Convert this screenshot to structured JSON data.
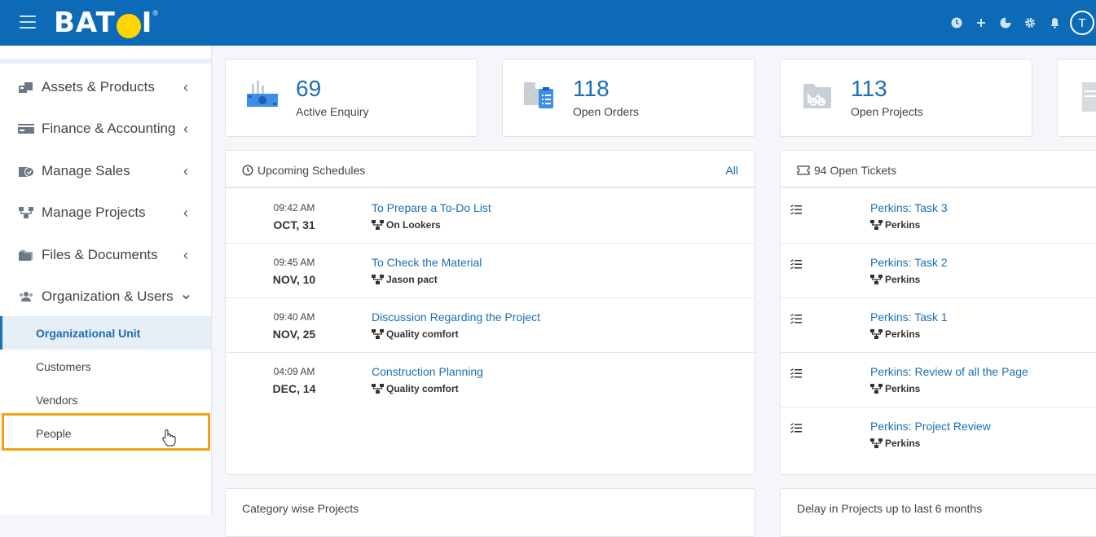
{
  "header": {
    "logo_text_left": "BAT",
    "logo_text_right": "I",
    "logo_reg": "®",
    "avatar_initial": "T",
    "icons": [
      "clock-icon",
      "plus-icon",
      "pie-chart-icon",
      "gear-icon",
      "bell-icon"
    ]
  },
  "sidebar": {
    "items": [
      {
        "label": "Assets & Products",
        "icon": "assets-icon",
        "chevron": "‹"
      },
      {
        "label": "Finance & Accounting",
        "icon": "finance-icon",
        "chevron": "‹"
      },
      {
        "label": "Manage Sales",
        "icon": "sales-icon",
        "chevron": "‹"
      },
      {
        "label": "Manage Projects",
        "icon": "projects-icon",
        "chevron": "‹"
      },
      {
        "label": "Files & Documents",
        "icon": "folder-icon",
        "chevron": "‹"
      },
      {
        "label": "Organization & Users",
        "icon": "users-icon",
        "chevron": "⌄"
      }
    ],
    "sub_items": [
      {
        "label": "Organizational Unit",
        "active": true
      },
      {
        "label": "Customers",
        "active": false
      },
      {
        "label": "Vendors",
        "active": false
      },
      {
        "label": "People",
        "active": false
      }
    ]
  },
  "stats": [
    {
      "value": "69",
      "label": "Active Enquiry",
      "icon": "enquiry-icon"
    },
    {
      "value": "118",
      "label": "Open Orders",
      "icon": "orders-icon"
    },
    {
      "value": "113",
      "label": "Open Projects",
      "icon": "projects-folder-icon"
    }
  ],
  "schedules": {
    "title": "Upcoming Schedules",
    "link": "All",
    "rows": [
      {
        "time": "09:42 AM",
        "date": "OCT, 31",
        "title": "To Prepare a To-Do List",
        "project": "On Lookers"
      },
      {
        "time": "09:45 AM",
        "date": "NOV, 10",
        "title": "To Check the Material",
        "project": "Jason pact"
      },
      {
        "time": "09:40 AM",
        "date": "NOV, 25",
        "title": "Discussion Regarding the Project",
        "project": "Quality comfort"
      },
      {
        "time": "04:09 AM",
        "date": "DEC, 14",
        "title": "Construction Planning",
        "project": "Quality comfort"
      }
    ]
  },
  "tickets": {
    "title": "94 Open Tickets",
    "rows": [
      {
        "title": "Perkins: Task 3",
        "project": "Perkins"
      },
      {
        "title": "Perkins: Task 2",
        "project": "Perkins"
      },
      {
        "title": "Perkins: Task 1",
        "project": "Perkins"
      },
      {
        "title": "Perkins: Review of all the Page",
        "project": "Perkins"
      },
      {
        "title": "Perkins: Project Review",
        "project": "Perkins"
      }
    ]
  },
  "bottom": {
    "left_title": "Category wise Projects",
    "right_title": "Delay in Projects up to last 6 months"
  },
  "colors": {
    "topbar": "#0d6ab7",
    "accent": "#1a6fb5",
    "highlight": "#f5a20f"
  }
}
